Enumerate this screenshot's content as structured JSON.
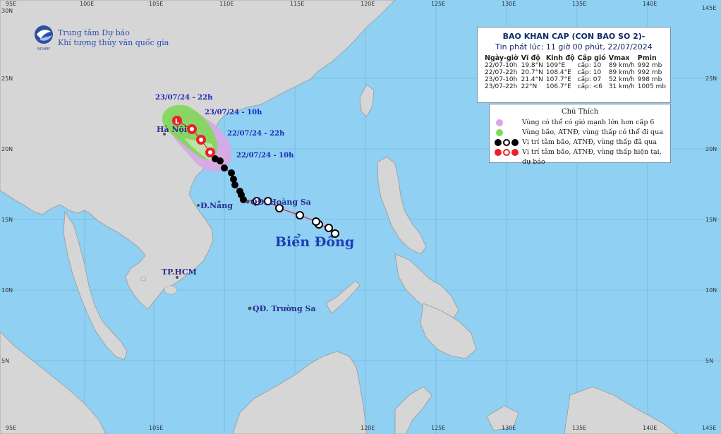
{
  "org": {
    "line1": "Trung tâm Dự báo",
    "line2": "Khí tượng thủy văn quốc gia",
    "logo_text": "NCHMF"
  },
  "bulletin": {
    "title": "BAO KHAN CAP (CON BAO SO 2)-",
    "issued": "Tin phát lúc: 11 giờ 00 phút, 22/07/2024",
    "headers": [
      "Ngày-giờ",
      "Vĩ độ",
      "Kinh độ",
      "Cấp gió",
      "Vmax",
      "Pmin"
    ],
    "rows": [
      [
        "22/07-10h",
        "19.8°N",
        "109°E",
        "cấp: 10",
        "89 km/h",
        "992 mb"
      ],
      [
        "22/07-22h",
        "20.7°N",
        "108.4°E",
        "cấp: 10",
        "89 km/h",
        "992 mb"
      ],
      [
        "23/07-10h",
        "21.4°N",
        "107.7°E",
        "cấp: 07",
        "52 km/h",
        "998 mb"
      ],
      [
        "23/07-22h",
        "22°N",
        "106.7°E",
        "cấp: <6",
        "31 km/h",
        "1005 mb"
      ]
    ]
  },
  "legend": {
    "title": "Chú Thích",
    "items": [
      {
        "label": "Vùng có thể có gió mạnh lớn hơn cấp 6",
        "color": "#d9a6e6"
      },
      {
        "label": "Vùng bão, ATNĐ, vùng thấp có thể đi qua",
        "color": "#7ed957"
      },
      {
        "label": "Vị trí tâm bão, ATNĐ, vùng thấp đã qua",
        "color": "#000000"
      },
      {
        "label": "Vị trí tâm bão, ATNĐ, vùng thấp hiện tại, dự báo",
        "color": "#e8202a"
      }
    ]
  },
  "places": {
    "hanoi": "Hà Nội",
    "danang": "Đ.Nẵng",
    "hcm": "TP.HCM",
    "hoangsa": "QĐ. Hoàng Sa",
    "truongsa": "QĐ. Trường Sa",
    "sea": "Biển Đông"
  },
  "forecast_labels": [
    "23/07/24 - 22h",
    "23/07/24 - 10h",
    "22/07/24 - 22h",
    "22/07/24 - 10h"
  ],
  "lon_ticks": [
    "95E",
    "100E",
    "105E",
    "110E",
    "115E",
    "120E",
    "125E",
    "130E",
    "135E",
    "140E",
    "145E"
  ],
  "lat_ticks": [
    "5N",
    "10N",
    "15N",
    "20N",
    "25N",
    "30N"
  ],
  "colors": {
    "sea": "#8fd0f3",
    "land": "#d6d6d6",
    "track": "#e8202a",
    "green_zone": "#7ed957",
    "purple_zone": "#d9a6e6"
  }
}
